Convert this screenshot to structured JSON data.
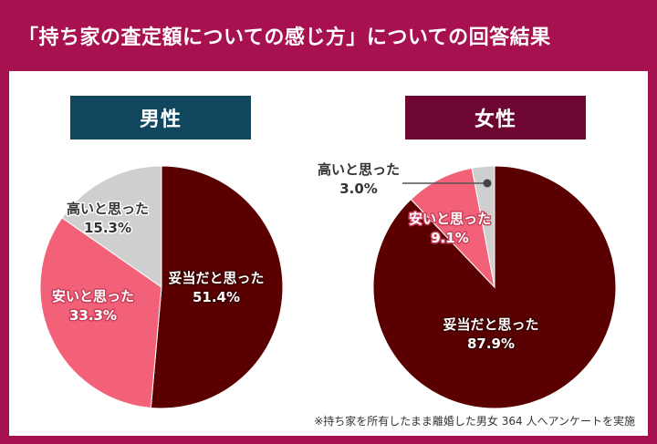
{
  "header": {
    "title": "「持ち家の査定額についての感じ方」についての回答結果"
  },
  "footnote": "※持ち家を所有したまま離婚した男女 364 人へアンケートを実施",
  "colors": {
    "frame": "#a8114f",
    "male_badge": "#10475e",
    "female_badge": "#6e0632",
    "fair": "#5a0000",
    "cheap": "#f26178",
    "high": "#cfcfcf"
  },
  "chart_data": [
    {
      "type": "pie",
      "title": "男性",
      "slices": [
        {
          "label": "妥当だと思った",
          "value": 51.4,
          "display": "51.4%",
          "color": "#5a0000"
        },
        {
          "label": "安いと思った",
          "value": 33.3,
          "display": "33.3%",
          "color": "#f26178"
        },
        {
          "label": "高いと思った",
          "value": 15.3,
          "display": "15.3%",
          "color": "#cfcfcf"
        }
      ]
    },
    {
      "type": "pie",
      "title": "女性",
      "slices": [
        {
          "label": "妥当だと思った",
          "value": 87.9,
          "display": "87.9%",
          "color": "#5a0000"
        },
        {
          "label": "安いと思った",
          "value": 9.1,
          "display": "9.1%",
          "color": "#f26178"
        },
        {
          "label": "高いと思った",
          "value": 3.0,
          "display": "3.0%",
          "color": "#cfcfcf"
        }
      ]
    }
  ]
}
